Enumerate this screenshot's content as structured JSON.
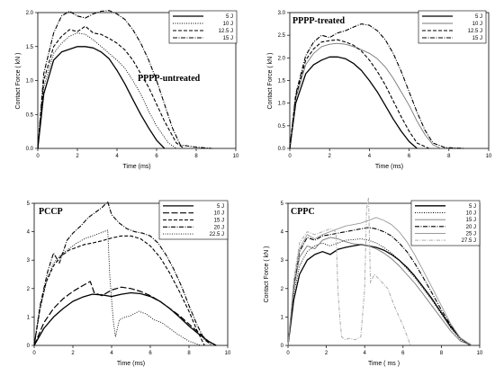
{
  "chart_data": [
    {
      "type": "line",
      "title": "PPPP-untreated",
      "xlabel": "Time (ms)",
      "ylabel": "Contact Force ( kN )",
      "xlim": [
        0,
        10
      ],
      "ylim": [
        0,
        2.0
      ],
      "xticks": [
        0,
        2,
        4,
        6,
        8,
        10
      ],
      "yticks": [
        0.0,
        0.5,
        1.0,
        1.5,
        2.0
      ],
      "xtick_labels": [
        "0",
        "2",
        "4",
        "6",
        "8",
        "10"
      ],
      "ytick_labels": [
        "0.0",
        "0.5",
        "1.0",
        "1.5",
        "2.0"
      ],
      "legend_position": "top-right",
      "series": [
        {
          "name": "5 J",
          "style": "solid",
          "x": [
            0,
            0.3,
            0.8,
            1.2,
            1.6,
            2.0,
            2.4,
            2.8,
            3.2,
            3.6,
            4.0,
            4.4,
            4.8,
            5.2,
            5.6,
            6.0,
            6.4
          ],
          "y": [
            0,
            0.8,
            1.3,
            1.42,
            1.46,
            1.5,
            1.5,
            1.48,
            1.42,
            1.32,
            1.15,
            0.95,
            0.72,
            0.5,
            0.3,
            0.12,
            0
          ]
        },
        {
          "name": "10 J",
          "style": "dotted",
          "x": [
            0,
            0.3,
            0.8,
            1.2,
            1.6,
            2.0,
            2.4,
            2.8,
            3.2,
            3.6,
            4.0,
            4.4,
            4.8,
            5.2,
            5.6,
            6.0,
            6.6,
            7.0
          ],
          "y": [
            0,
            0.9,
            1.4,
            1.55,
            1.65,
            1.7,
            1.68,
            1.6,
            1.5,
            1.4,
            1.3,
            1.18,
            1.0,
            0.8,
            0.55,
            0.33,
            0.08,
            0
          ]
        },
        {
          "name": "12.5 J",
          "style": "dashed",
          "x": [
            0,
            0.3,
            0.8,
            1.2,
            1.6,
            2.0,
            2.4,
            2.8,
            3.2,
            3.6,
            4.0,
            4.4,
            4.8,
            5.2,
            5.6,
            6.0,
            6.4,
            7.0,
            7.4
          ],
          "y": [
            0,
            1.0,
            1.5,
            1.65,
            1.75,
            1.72,
            1.8,
            1.7,
            1.68,
            1.62,
            1.55,
            1.45,
            1.3,
            1.1,
            0.9,
            0.65,
            0.4,
            0.08,
            0
          ]
        },
        {
          "name": "15 J",
          "style": "dashdot",
          "x": [
            0,
            0.3,
            0.8,
            1.2,
            1.6,
            2.0,
            2.4,
            2.8,
            3.2,
            3.6,
            4.0,
            4.4,
            4.8,
            5.2,
            5.6,
            6.0,
            6.4,
            6.8,
            7.2,
            8.0,
            8.8
          ],
          "y": [
            0,
            1.1,
            1.7,
            1.95,
            2.02,
            1.95,
            1.92,
            1.98,
            2.02,
            2.03,
            1.98,
            1.9,
            1.75,
            1.55,
            1.3,
            1.0,
            0.65,
            0.3,
            0.05,
            0.02,
            0
          ]
        }
      ]
    },
    {
      "type": "line",
      "title": "PPPP-treated",
      "xlabel": "Time (ms)",
      "ylabel": "Contact Force ( kN )",
      "xlim": [
        0,
        10
      ],
      "ylim": [
        0,
        3.0
      ],
      "xticks": [
        0,
        2,
        4,
        6,
        8,
        10
      ],
      "yticks": [
        0.0,
        0.5,
        1.0,
        1.5,
        2.0,
        2.5,
        3.0
      ],
      "xtick_labels": [
        "0",
        "2",
        "4",
        "6",
        "8",
        "10"
      ],
      "ytick_labels": [
        "0.0",
        "0.5",
        "1.0",
        "1.5",
        "2.0",
        "2.5",
        "3.0"
      ],
      "legend_position": "top-right",
      "series": [
        {
          "name": "5 J",
          "style": "solid",
          "x": [
            0,
            0.3,
            0.8,
            1.2,
            1.6,
            2.0,
            2.4,
            2.8,
            3.2,
            3.6,
            4.0,
            4.4,
            4.8,
            5.2,
            5.6,
            6.0,
            6.4
          ],
          "y": [
            0,
            1.0,
            1.65,
            1.85,
            1.95,
            2.02,
            2.02,
            1.98,
            1.88,
            1.72,
            1.5,
            1.25,
            0.95,
            0.65,
            0.38,
            0.15,
            0
          ]
        },
        {
          "name": "10 J",
          "style": "solid-gray",
          "x": [
            0,
            0.3,
            0.8,
            1.2,
            1.6,
            2.0,
            2.4,
            2.8,
            3.2,
            3.6,
            4.0,
            4.4,
            4.8,
            5.2,
            5.6,
            6.0,
            6.4,
            6.8,
            7.2,
            7.6
          ],
          "y": [
            0,
            1.1,
            1.85,
            2.1,
            2.25,
            2.3,
            2.32,
            2.3,
            2.25,
            2.18,
            2.1,
            1.98,
            1.8,
            1.55,
            1.25,
            0.95,
            0.6,
            0.3,
            0.08,
            0
          ]
        },
        {
          "name": "12.5 J",
          "style": "dashed",
          "x": [
            0,
            0.3,
            0.8,
            1.2,
            1.6,
            2.0,
            2.4,
            2.8,
            3.2,
            3.6,
            4.0,
            4.4,
            4.8,
            5.2,
            5.6,
            6.0,
            6.4,
            7.0
          ],
          "y": [
            0,
            1.15,
            1.95,
            2.2,
            2.35,
            2.38,
            2.4,
            2.35,
            2.28,
            2.15,
            1.95,
            1.7,
            1.4,
            1.05,
            0.7,
            0.38,
            0.12,
            0
          ]
        },
        {
          "name": "15 J",
          "style": "dashdot",
          "x": [
            0,
            0.3,
            0.8,
            1.2,
            1.6,
            2.0,
            2.4,
            2.8,
            3.2,
            3.6,
            4.0,
            4.4,
            4.8,
            5.2,
            5.6,
            6.0,
            6.4,
            6.8,
            7.2,
            7.8,
            8.8
          ],
          "y": [
            0,
            1.2,
            2.05,
            2.35,
            2.5,
            2.45,
            2.55,
            2.6,
            2.68,
            2.75,
            2.72,
            2.6,
            2.4,
            2.1,
            1.7,
            1.25,
            0.8,
            0.4,
            0.12,
            0.02,
            0
          ]
        }
      ]
    },
    {
      "type": "line",
      "title": "PCCP",
      "xlabel": "Time (ms)",
      "ylabel": "",
      "xlim": [
        0,
        10
      ],
      "ylim": [
        0,
        5.0
      ],
      "xticks": [
        0,
        2,
        4,
        6,
        8,
        10
      ],
      "yticks": [
        0,
        1,
        2,
        3,
        4,
        5
      ],
      "xtick_labels": [
        "0",
        "2",
        "4",
        "6",
        "8",
        "10"
      ],
      "ytick_labels": [
        "0",
        "1",
        "2",
        "3",
        "4",
        "5"
      ],
      "legend_position": "top-right",
      "series": [
        {
          "name": "5 J",
          "style": "solid",
          "x": [
            0,
            0.5,
            1.0,
            1.5,
            2.0,
            2.5,
            3.0,
            3.5,
            4.0,
            4.5,
            5.0,
            5.5,
            6.0,
            6.5,
            7.0,
            7.5,
            8.0,
            8.5,
            9.0,
            9.4
          ],
          "y": [
            0,
            0.6,
            1.0,
            1.3,
            1.55,
            1.7,
            1.8,
            1.78,
            1.72,
            1.8,
            1.85,
            1.82,
            1.72,
            1.55,
            1.3,
            1.0,
            0.68,
            0.4,
            0.15,
            0
          ]
        },
        {
          "name": "10 J",
          "style": "longdash",
          "x": [
            0,
            0.5,
            1.0,
            1.5,
            2.0,
            2.5,
            2.9,
            3.1,
            3.5,
            4.0,
            4.5,
            5.0,
            5.5,
            6.0,
            6.5,
            7.0,
            7.5,
            8.0,
            8.5,
            9.0,
            9.4
          ],
          "y": [
            0,
            0.8,
            1.3,
            1.65,
            1.9,
            2.1,
            2.25,
            1.85,
            1.75,
            1.95,
            2.05,
            2.0,
            1.9,
            1.75,
            1.55,
            1.3,
            1.05,
            0.75,
            0.45,
            0.15,
            0
          ]
        },
        {
          "name": "15 J",
          "style": "dashed",
          "x": [
            0,
            0.3,
            0.6,
            1.0,
            1.4,
            1.8,
            2.2,
            2.6,
            3.0,
            3.5,
            4.0,
            4.5,
            5.0,
            5.5,
            6.0,
            6.5,
            7.0,
            7.5,
            8.0,
            8.4,
            8.8
          ],
          "y": [
            0,
            1.3,
            2.2,
            2.8,
            3.15,
            3.35,
            3.45,
            3.55,
            3.6,
            3.68,
            3.78,
            3.85,
            3.85,
            3.75,
            3.5,
            3.1,
            2.55,
            1.9,
            1.2,
            0.55,
            0
          ]
        },
        {
          "name": "20 J",
          "style": "dashdot",
          "x": [
            0,
            0.3,
            0.7,
            1.0,
            1.3,
            1.7,
            2.0,
            2.4,
            2.8,
            3.2,
            3.5,
            3.8,
            4.0,
            4.4,
            4.8,
            5.2,
            5.6,
            6.0,
            6.4,
            6.8,
            7.2,
            7.6,
            8.0,
            8.4,
            8.8,
            9.2
          ],
          "y": [
            0,
            1.4,
            2.6,
            3.25,
            2.9,
            3.7,
            3.95,
            4.2,
            4.5,
            4.7,
            4.85,
            5.05,
            4.6,
            4.3,
            4.1,
            4.0,
            3.95,
            3.85,
            3.6,
            3.2,
            2.7,
            2.1,
            1.4,
            0.75,
            0.2,
            0
          ]
        },
        {
          "name": "22.5 J",
          "style": "dotted",
          "x": [
            0,
            0.3,
            0.7,
            1.0,
            1.4,
            1.8,
            2.2,
            2.6,
            3.0,
            3.4,
            3.8,
            3.9,
            4.0,
            4.1,
            4.2,
            4.4,
            4.7,
            5.0,
            5.4,
            5.8,
            6.2,
            6.6,
            7.0,
            7.4,
            8.0,
            8.6
          ],
          "y": [
            0,
            1.3,
            2.4,
            2.9,
            3.2,
            3.4,
            3.6,
            3.75,
            3.85,
            3.95,
            4.05,
            2.5,
            1.6,
            0.8,
            0.3,
            0.9,
            1.0,
            1.05,
            1.2,
            1.1,
            0.9,
            0.8,
            0.6,
            0.4,
            0.15,
            0
          ]
        }
      ]
    },
    {
      "type": "line",
      "title": "CPPC",
      "xlabel": "Time ( ms )",
      "ylabel": "Contact Force ( kN )",
      "xlim": [
        0,
        10
      ],
      "ylim": [
        0,
        5.0
      ],
      "xticks": [
        0,
        2,
        4,
        6,
        8,
        10
      ],
      "yticks": [
        0,
        1,
        2,
        3,
        4,
        5
      ],
      "xtick_labels": [
        "0",
        "2",
        "4",
        "6",
        "8",
        "10"
      ],
      "ytick_labels": [
        "0",
        "1",
        "2",
        "3",
        "4",
        "5"
      ],
      "legend_position": "top-right",
      "series": [
        {
          "name": "5 J",
          "style": "solid",
          "x": [
            0,
            0.3,
            0.6,
            1.0,
            1.4,
            1.8,
            2.2,
            2.6,
            3.0,
            3.4,
            3.8,
            4.2,
            4.6,
            5.0,
            5.4,
            5.8,
            6.2,
            6.6,
            7.0,
            7.5,
            8.0,
            8.5,
            9.0,
            9.5
          ],
          "y": [
            0,
            1.6,
            2.5,
            3.0,
            3.2,
            3.3,
            3.2,
            3.38,
            3.45,
            3.5,
            3.55,
            3.5,
            3.45,
            3.35,
            3.2,
            3.0,
            2.75,
            2.45,
            2.1,
            1.65,
            1.15,
            0.65,
            0.25,
            0
          ]
        },
        {
          "name": "10 J",
          "style": "dotted",
          "x": [
            0,
            0.3,
            0.6,
            1.0,
            1.4,
            1.8,
            2.2,
            2.6,
            3.0,
            3.4,
            3.8,
            4.2,
            4.6,
            5.0,
            5.4,
            5.8,
            6.2,
            6.6,
            7.0,
            7.5,
            8.0,
            8.5,
            9.0,
            9.5
          ],
          "y": [
            0,
            1.8,
            2.8,
            3.3,
            3.5,
            3.6,
            3.5,
            3.6,
            3.7,
            3.72,
            3.75,
            3.7,
            3.6,
            3.45,
            3.25,
            3.0,
            2.7,
            2.4,
            2.05,
            1.6,
            1.1,
            0.6,
            0.2,
            0
          ]
        },
        {
          "name": "15 J",
          "style": "solid-gray",
          "x": [
            0,
            0.3,
            0.6,
            1.0,
            1.4,
            1.8,
            2.2,
            2.6,
            3.0,
            3.4,
            3.8,
            4.2,
            4.6,
            5.0,
            5.4,
            5.8,
            6.2,
            6.6,
            7.0,
            7.5,
            8.0,
            8.5,
            9.0,
            9.6
          ],
          "y": [
            0,
            2.0,
            3.1,
            3.5,
            3.4,
            3.7,
            3.8,
            3.75,
            3.65,
            3.58,
            3.55,
            3.5,
            3.4,
            3.25,
            3.05,
            2.8,
            2.5,
            2.2,
            1.85,
            1.4,
            0.95,
            0.5,
            0.15,
            0
          ]
        },
        {
          "name": "20 J",
          "style": "dashdot",
          "x": [
            0,
            0.3,
            0.6,
            1.0,
            1.4,
            1.8,
            2.2,
            2.6,
            3.0,
            3.4,
            3.8,
            4.2,
            4.6,
            5.0,
            5.4,
            5.8,
            6.2,
            6.6,
            7.0,
            7.5,
            8.0,
            8.5,
            9.0,
            9.6
          ],
          "y": [
            0,
            2.1,
            3.3,
            3.8,
            3.7,
            3.85,
            3.9,
            3.95,
            4.0,
            4.05,
            4.1,
            4.15,
            4.1,
            4.0,
            3.85,
            3.6,
            3.3,
            2.9,
            2.45,
            1.85,
            1.25,
            0.7,
            0.25,
            0
          ]
        },
        {
          "name": "25 J",
          "style": "solid-gray2",
          "x": [
            0,
            0.3,
            0.6,
            1.0,
            1.4,
            1.8,
            2.2,
            2.6,
            3.0,
            3.4,
            3.8,
            4.2,
            4.6,
            5.0,
            5.4,
            5.8,
            6.2,
            6.6,
            7.0,
            7.5,
            8.0,
            8.5,
            9.0,
            9.6
          ],
          "y": [
            0,
            2.2,
            3.4,
            3.9,
            3.75,
            3.9,
            4.0,
            4.1,
            4.2,
            4.25,
            4.3,
            4.4,
            4.5,
            4.4,
            4.25,
            4.0,
            3.65,
            3.2,
            2.7,
            2.05,
            1.4,
            0.75,
            0.25,
            0
          ]
        },
        {
          "name": "27.5 J",
          "style": "dashed-gray",
          "x": [
            0,
            0.3,
            0.6,
            1.0,
            1.4,
            1.8,
            2.2,
            2.5,
            2.6,
            2.7,
            2.8,
            3.0,
            3.2,
            3.5,
            3.8,
            4.0,
            4.1,
            4.2,
            4.3,
            4.5,
            4.8,
            5.2,
            5.6,
            6.0,
            6.4
          ],
          "y": [
            0,
            2.3,
            3.6,
            4.0,
            3.9,
            4.0,
            4.1,
            4.0,
            2.0,
            1.0,
            0.3,
            0.2,
            0.25,
            0.2,
            0.3,
            2.0,
            4.8,
            5.2,
            2.2,
            2.5,
            2.3,
            2.0,
            1.3,
            0.7,
            0
          ]
        }
      ]
    }
  ]
}
